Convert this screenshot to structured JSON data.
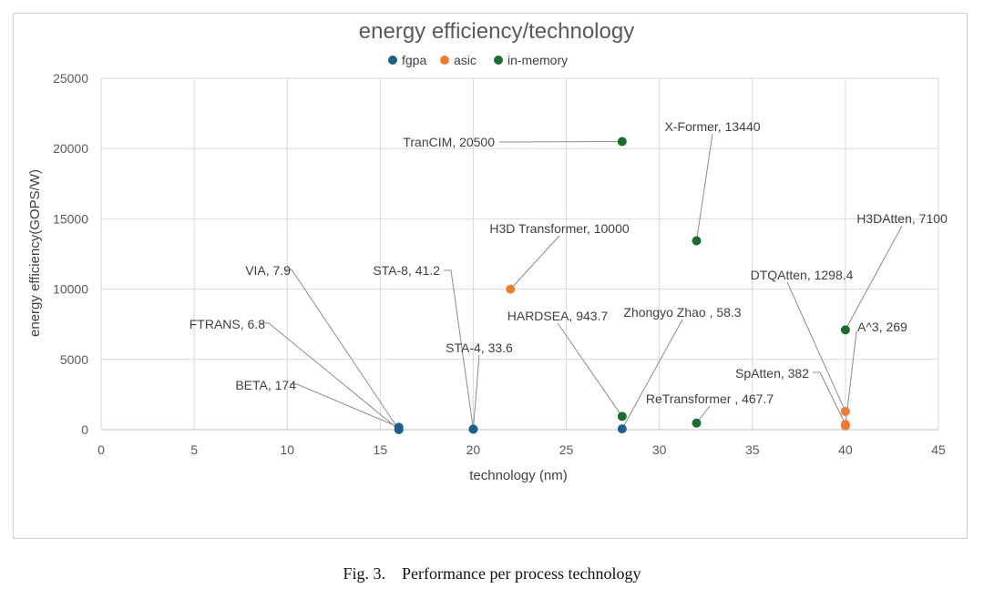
{
  "chart_data": {
    "type": "scatter",
    "title": "energy efficiency/technology",
    "xlabel": "technology (nm)",
    "ylabel": "energy efficiency(GOPS/W)",
    "xlim": [
      0,
      45
    ],
    "ylim": [
      0,
      25000
    ],
    "xticks": [
      0,
      5,
      10,
      15,
      20,
      25,
      30,
      35,
      40,
      45
    ],
    "yticks": [
      0,
      5000,
      10000,
      15000,
      20000,
      25000
    ],
    "grid": true,
    "legend_position": "top",
    "series": [
      {
        "name": "fgpa",
        "color": "#1f5f8b",
        "points": [
          {
            "x": 16,
            "y": 7.9,
            "label": "VIA, 7.9"
          },
          {
            "x": 16,
            "y": 6.8,
            "label": "FTRANS, 6.8"
          },
          {
            "x": 16,
            "y": 174,
            "label": "BETA, 174"
          },
          {
            "x": 20,
            "y": 41.2,
            "label": "STA-8, 41.2"
          },
          {
            "x": 20,
            "y": 33.6,
            "label": "STA-4, 33.6"
          },
          {
            "x": 28,
            "y": 58.3,
            "label": "Zhongyo Zhao , 58.3"
          }
        ]
      },
      {
        "name": "asic",
        "color": "#ed7d31",
        "points": [
          {
            "x": 22,
            "y": 10000,
            "label": "H3D Transformer, 10000"
          },
          {
            "x": 40,
            "y": 1298.4,
            "label": "DTQAtten, 1298.4"
          },
          {
            "x": 40,
            "y": 382,
            "label": "SpAtten, 382"
          },
          {
            "x": 40,
            "y": 269,
            "label": "A^3, 269"
          }
        ]
      },
      {
        "name": "in-memory",
        "color": "#1e6b2e",
        "points": [
          {
            "x": 28,
            "y": 20500,
            "label": "TranCIM, 20500"
          },
          {
            "x": 32,
            "y": 13440,
            "label": "X-Former, 13440"
          },
          {
            "x": 40,
            "y": 7100,
            "label": "H3DAtten, 7100"
          },
          {
            "x": 28,
            "y": 943.7,
            "label": "HARDSEA, 943.7"
          },
          {
            "x": 32,
            "y": 467.7,
            "label": "ReTransformer , 467.7"
          }
        ]
      }
    ]
  },
  "caption": "Fig. 3. Performance per process technology"
}
